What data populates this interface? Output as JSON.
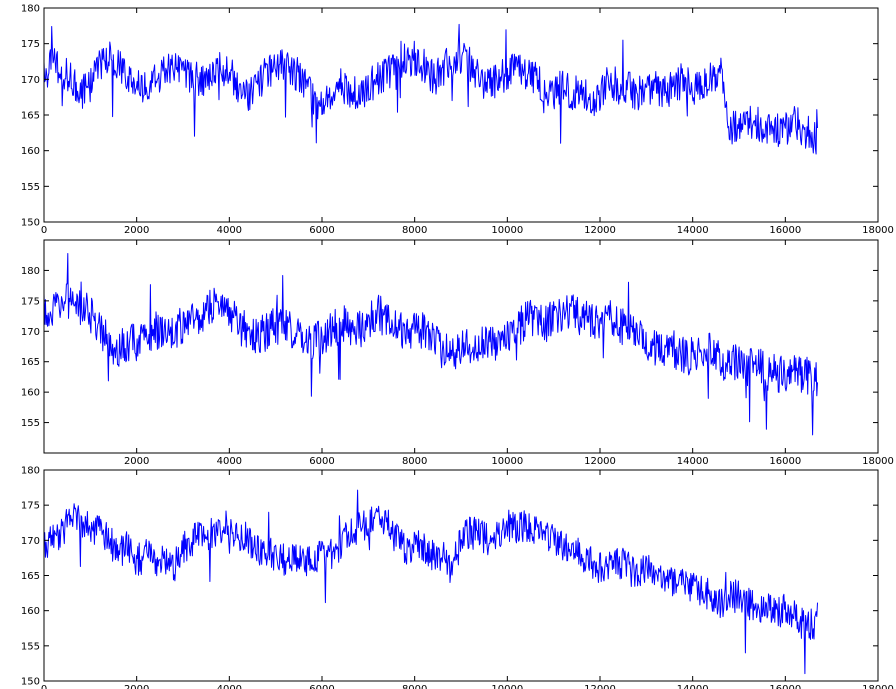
{
  "figure": {
    "background": "#ffffff",
    "line_color": "#0000ff"
  },
  "chart_data": [
    {
      "type": "line",
      "title": "",
      "xlabel": "",
      "ylabel": "",
      "xlim": [
        0,
        18000
      ],
      "ylim": [
        150,
        180
      ],
      "xticks": [
        0,
        2000,
        4000,
        6000,
        8000,
        10000,
        12000,
        14000,
        16000,
        18000
      ],
      "xtick_labels": [
        "0",
        "2000",
        "4000",
        "6000",
        "8000",
        "10000",
        "12000",
        "14000",
        "16000",
        "18000"
      ],
      "yticks": [
        150,
        155,
        160,
        165,
        170,
        175,
        180
      ],
      "ytick_labels": [
        "150",
        "155",
        "160",
        "165",
        "170",
        "175",
        "180"
      ],
      "grid": false,
      "series": [
        {
          "color": "#0000ff",
          "x": [
            0,
            200,
            400,
            600,
            800,
            1000,
            1200,
            1400,
            1600,
            1800,
            2000,
            2200,
            2400,
            2600,
            2800,
            3000,
            3200,
            3400,
            3600,
            3800,
            4000,
            4200,
            4400,
            4600,
            4800,
            5000,
            5200,
            5400,
            5600,
            5800,
            6000,
            6200,
            6400,
            6600,
            6800,
            7000,
            7200,
            7400,
            7600,
            7800,
            8000,
            8200,
            8400,
            8600,
            8800,
            9000,
            9200,
            9400,
            9600,
            9800,
            10000,
            10200,
            10400,
            10600,
            10800,
            11000,
            11200,
            11400,
            11600,
            11800,
            12000,
            12200,
            12400,
            12600,
            12800,
            13000,
            13200,
            13400,
            13600,
            13800,
            14000,
            14200,
            14400,
            14600,
            14800,
            15000,
            15200,
            15400,
            15600,
            15800,
            16000,
            16200,
            16400,
            16600,
            16700
          ],
          "y": [
            171,
            172,
            171,
            170,
            168,
            169,
            172,
            173,
            172,
            170,
            169,
            169,
            170,
            171,
            172,
            171,
            170,
            170,
            171,
            172,
            171,
            169,
            168,
            169,
            171,
            172,
            172,
            171,
            170,
            167,
            166,
            168,
            169,
            168,
            168,
            169,
            170,
            171,
            171,
            172,
            173,
            172,
            170,
            171,
            173,
            173,
            172,
            170,
            169,
            170,
            171,
            172,
            171,
            170,
            169,
            168,
            169,
            168,
            168,
            167,
            168,
            170,
            169,
            169,
            168,
            168,
            169,
            168,
            169,
            170,
            169,
            169,
            170,
            171,
            163,
            164,
            164,
            164,
            163,
            163,
            163,
            164,
            163,
            162,
            161
          ],
          "noise": 2.5
        }
      ]
    },
    {
      "type": "line",
      "title": "",
      "xlabel": "",
      "ylabel": "",
      "xlim": [
        0,
        18000
      ],
      "ylim": [
        150,
        185
      ],
      "xticks": [
        0,
        2000,
        4000,
        6000,
        8000,
        10000,
        12000,
        14000,
        16000,
        18000
      ],
      "xtick_labels": [
        "",
        "2000",
        "4000",
        "6000",
        "8000",
        "10000",
        "12000",
        "14000",
        "16000",
        "18000"
      ],
      "yticks": [
        150,
        155,
        160,
        165,
        170,
        175,
        180,
        185
      ],
      "ytick_labels": [
        "",
        "155",
        "160",
        "165",
        "170",
        "175",
        "180",
        ""
      ],
      "grid": false,
      "series": [
        {
          "color": "#0000ff",
          "x": [
            0,
            200,
            400,
            600,
            800,
            1000,
            1200,
            1400,
            1600,
            1800,
            2000,
            2200,
            2400,
            2600,
            2800,
            3000,
            3200,
            3400,
            3600,
            3800,
            4000,
            4200,
            4400,
            4600,
            4800,
            5000,
            5200,
            5400,
            5600,
            5800,
            6000,
            6200,
            6400,
            6600,
            6800,
            7000,
            7200,
            7400,
            7600,
            7800,
            8000,
            8200,
            8400,
            8600,
            8800,
            9000,
            9200,
            9400,
            9600,
            9800,
            10000,
            10200,
            10400,
            10600,
            10800,
            11000,
            11200,
            11400,
            11600,
            11800,
            12000,
            12200,
            12400,
            12600,
            12800,
            13000,
            13200,
            13400,
            13600,
            13800,
            14000,
            14200,
            14400,
            14600,
            14800,
            15000,
            15200,
            15400,
            15600,
            15800,
            16000,
            16200,
            16400,
            16600,
            16700
          ],
          "y": [
            174,
            173,
            174,
            176,
            175,
            173,
            170,
            168,
            167,
            168,
            168,
            169,
            170,
            170,
            170,
            171,
            172,
            172,
            174,
            175,
            173,
            171,
            170,
            169,
            170,
            171,
            171,
            170,
            168,
            168,
            169,
            170,
            171,
            171,
            170,
            172,
            173,
            172,
            171,
            170,
            170,
            170,
            168,
            167,
            167,
            167,
            168,
            168,
            169,
            168,
            169,
            170,
            172,
            172,
            171,
            172,
            173,
            173,
            172,
            172,
            172,
            172,
            171,
            170,
            170,
            168,
            167,
            167,
            167,
            166,
            166,
            166,
            167,
            165,
            165,
            165,
            164,
            165,
            163,
            163,
            163,
            163,
            163,
            162,
            162
          ],
          "noise": 3.2
        }
      ]
    },
    {
      "type": "line",
      "title": "",
      "xlabel": "",
      "ylabel": "",
      "xlim": [
        0,
        18000
      ],
      "ylim": [
        150,
        180
      ],
      "xticks": [
        0,
        2000,
        4000,
        6000,
        8000,
        10000,
        12000,
        14000,
        16000,
        18000
      ],
      "xtick_labels": [
        "0",
        "2000",
        "4000",
        "6000",
        "8000",
        "10000",
        "12000",
        "14000",
        "16000",
        "18000"
      ],
      "yticks": [
        150,
        155,
        160,
        165,
        170,
        175,
        180
      ],
      "ytick_labels": [
        "150",
        "155",
        "160",
        "165",
        "170",
        "175",
        "180"
      ],
      "grid": false,
      "series": [
        {
          "color": "#0000ff",
          "x": [
            0,
            200,
            400,
            600,
            800,
            1000,
            1200,
            1400,
            1600,
            1800,
            2000,
            2200,
            2400,
            2600,
            2800,
            3000,
            3200,
            3400,
            3600,
            3800,
            4000,
            4200,
            4400,
            4600,
            4800,
            5000,
            5200,
            5400,
            5600,
            5800,
            6000,
            6200,
            6400,
            6600,
            6800,
            7000,
            7200,
            7400,
            7600,
            7800,
            8000,
            8200,
            8400,
            8600,
            8800,
            9000,
            9200,
            9400,
            9600,
            9800,
            10000,
            10200,
            10400,
            10600,
            10800,
            11000,
            11200,
            11400,
            11600,
            11800,
            12000,
            12200,
            12400,
            12600,
            12800,
            13000,
            13200,
            13400,
            13600,
            13800,
            14000,
            14200,
            14400,
            14600,
            14800,
            15000,
            15200,
            15400,
            15600,
            15800,
            16000,
            16200,
            16400,
            16600,
            16700
          ],
          "y": [
            169,
            170,
            171,
            174,
            173,
            172,
            171,
            170,
            168,
            169,
            167,
            168,
            167,
            167,
            166,
            169,
            170,
            171,
            171,
            172,
            172,
            171,
            170,
            169,
            168,
            168,
            167,
            167,
            167,
            167,
            168,
            168,
            169,
            171,
            172,
            172,
            173,
            173,
            170,
            169,
            169,
            169,
            168,
            168,
            166,
            170,
            171,
            171,
            170,
            171,
            172,
            172,
            172,
            171,
            171,
            170,
            169,
            169,
            168,
            167,
            166,
            167,
            167,
            166,
            165,
            166,
            165,
            164,
            164,
            164,
            163,
            163,
            162,
            161,
            162,
            162,
            161,
            160,
            160,
            160,
            160,
            159,
            158,
            158,
            159
          ],
          "noise": 2.4
        }
      ]
    }
  ]
}
